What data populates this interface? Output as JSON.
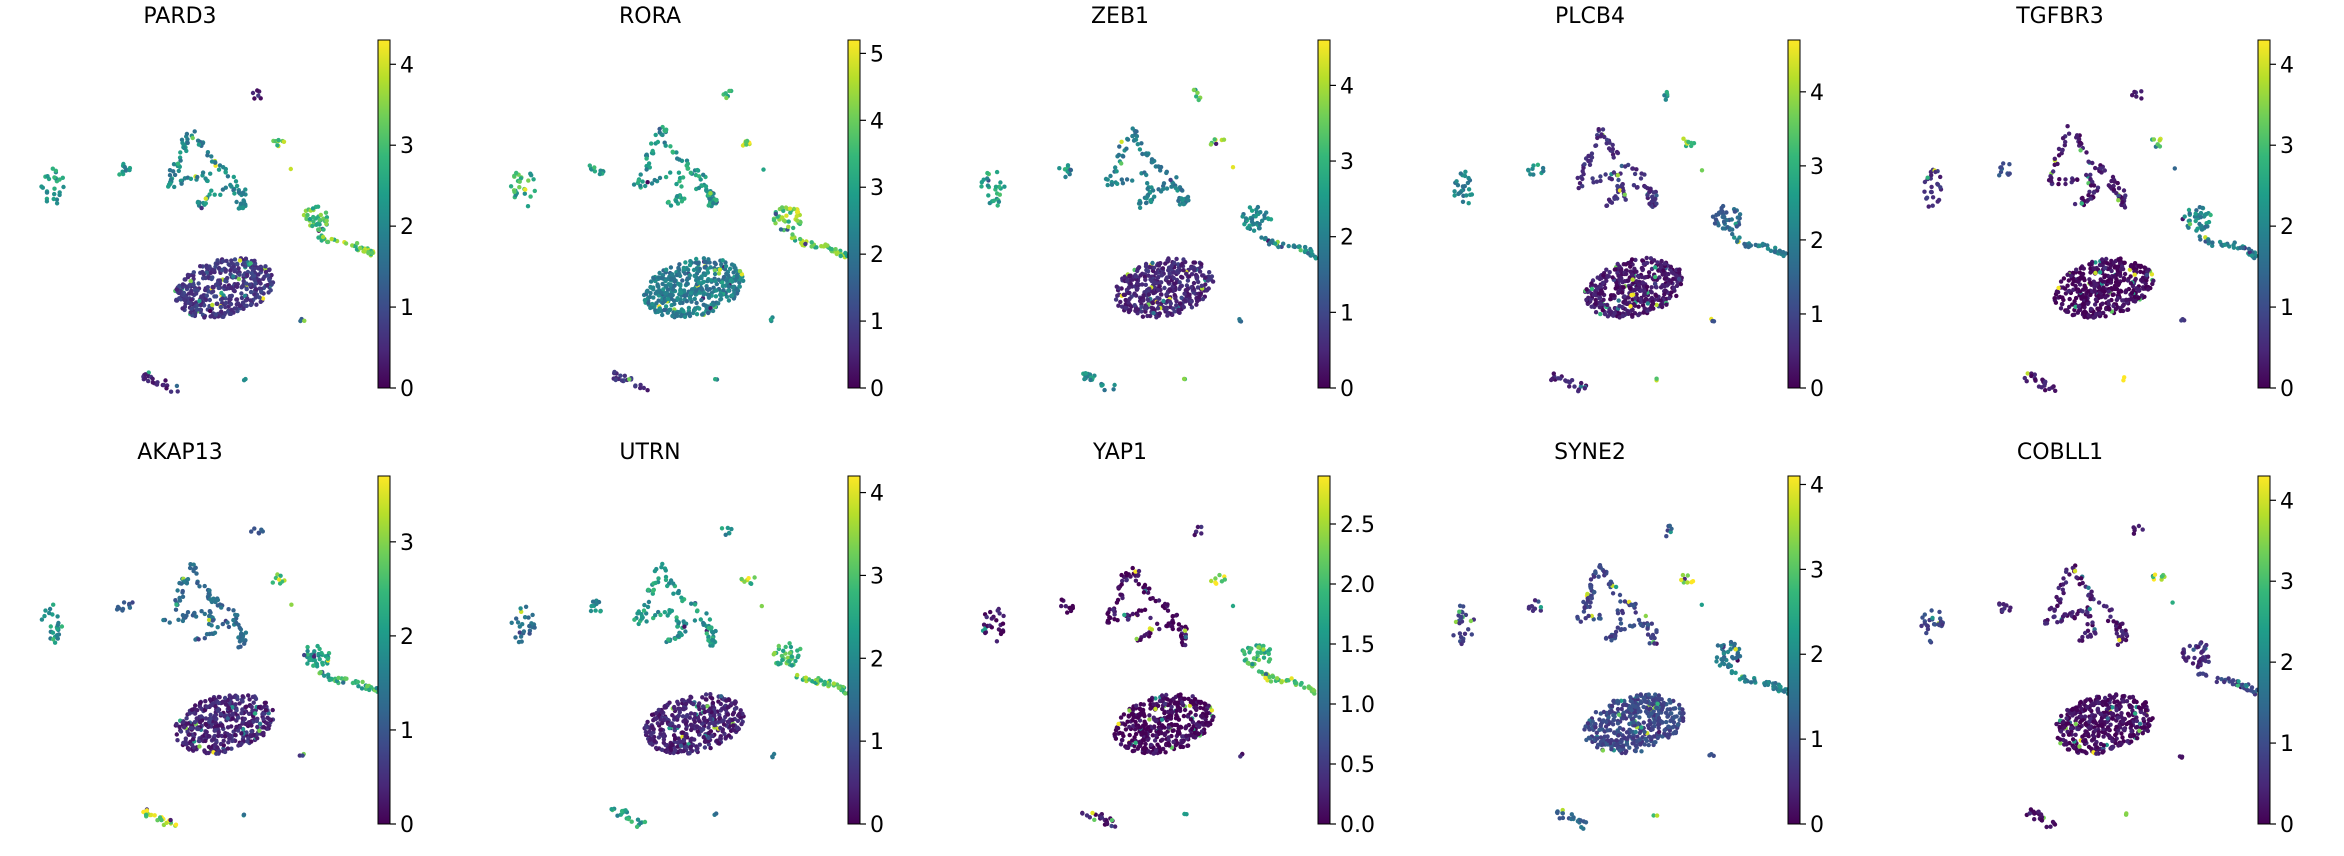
{
  "chart_data": [
    {
      "type": "scatter",
      "title": "PARD3",
      "colorbar": {
        "min": 0,
        "max": 4.3,
        "ticks": [
          0,
          1,
          2,
          3,
          4
        ],
        "labels": [
          "0",
          "1",
          "2",
          "3",
          "4"
        ]
      },
      "cluster_expression": {
        "left_small": 2.4,
        "left_mid": 2.2,
        "top_branch": 2.0,
        "top_right_dot": 0.4,
        "yellow_spot": 3.5,
        "tiny_yellow": 3.7,
        "right_lobe": 3.0,
        "right_tail": 3.2,
        "main_blob": 0.7,
        "small_right": 1.2,
        "bottom_left": 0.4,
        "bottom_dot": 1.8
      }
    },
    {
      "type": "scatter",
      "title": "RORA",
      "colorbar": {
        "min": 0,
        "max": 5.2,
        "ticks": [
          0,
          1,
          2,
          3,
          4,
          5
        ],
        "labels": [
          "0",
          "1",
          "2",
          "3",
          "4",
          "5"
        ]
      },
      "cluster_expression": {
        "left_small": 3.3,
        "left_mid": 3.0,
        "top_branch": 2.8,
        "top_right_dot": 3.6,
        "yellow_spot": 4.8,
        "tiny_yellow": 4.0,
        "right_lobe": 4.2,
        "right_tail": 3.8,
        "main_blob": 2.2,
        "small_right": 2.5,
        "bottom_left": 0.8,
        "bottom_dot": 2.6
      }
    },
    {
      "type": "scatter",
      "title": "ZEB1",
      "colorbar": {
        "min": 0,
        "max": 4.6,
        "ticks": [
          0,
          1,
          2,
          3,
          4
        ],
        "labels": [
          "0",
          "1",
          "2",
          "3",
          "4"
        ]
      },
      "cluster_expression": {
        "left_small": 2.7,
        "left_mid": 2.4,
        "top_branch": 2.0,
        "top_right_dot": 3.0,
        "yellow_spot": 3.9,
        "tiny_yellow": 4.0,
        "right_lobe": 2.2,
        "right_tail": 2.1,
        "main_blob": 0.5,
        "small_right": 1.5,
        "bottom_left": 2.2,
        "bottom_dot": 3.2
      }
    },
    {
      "type": "scatter",
      "title": "PLCB4",
      "colorbar": {
        "min": 0,
        "max": 4.7,
        "ticks": [
          0,
          1,
          2,
          3,
          4
        ],
        "labels": [
          "0",
          "1",
          "2",
          "3",
          "4"
        ]
      },
      "cluster_expression": {
        "left_small": 2.0,
        "left_mid": 2.4,
        "top_branch": 0.6,
        "top_right_dot": 2.4,
        "yellow_spot": 3.6,
        "tiny_yellow": 4.0,
        "right_lobe": 1.5,
        "right_tail": 1.9,
        "main_blob": 0.3,
        "small_right": 1.3,
        "bottom_left": 0.4,
        "bottom_dot": 3.8
      }
    },
    {
      "type": "scatter",
      "title": "TGFBR3",
      "colorbar": {
        "min": 0,
        "max": 4.3,
        "ticks": [
          0,
          1,
          2,
          3,
          4
        ],
        "labels": [
          "0",
          "1",
          "2",
          "3",
          "4"
        ]
      },
      "cluster_expression": {
        "left_small": 0.6,
        "left_mid": 1.2,
        "top_branch": 0.3,
        "top_right_dot": 0.5,
        "yellow_spot": 3.6,
        "tiny_yellow": 1.2,
        "right_lobe": 2.0,
        "right_tail": 1.8,
        "main_blob": 0.1,
        "small_right": 0.6,
        "bottom_left": 0.3,
        "bottom_dot": 3.9
      }
    },
    {
      "type": "scatter",
      "title": "AKAP13",
      "colorbar": {
        "min": 0,
        "max": 3.7,
        "ticks": [
          0,
          1,
          2,
          3
        ],
        "labels": [
          "0",
          "1",
          "2",
          "3"
        ]
      },
      "cluster_expression": {
        "left_small": 1.9,
        "left_mid": 1.0,
        "top_branch": 1.3,
        "top_right_dot": 1.1,
        "yellow_spot": 3.0,
        "tiny_yellow": 3.2,
        "right_lobe": 2.0,
        "right_tail": 2.4,
        "main_blob": 0.4,
        "small_right": 0.6,
        "bottom_left": 3.3,
        "bottom_dot": 1.5
      }
    },
    {
      "type": "scatter",
      "title": "UTRN",
      "colorbar": {
        "min": 0,
        "max": 4.2,
        "ticks": [
          0,
          1,
          2,
          3,
          4
        ],
        "labels": [
          "0",
          "1",
          "2",
          "3",
          "4"
        ]
      },
      "cluster_expression": {
        "left_small": 1.6,
        "left_mid": 2.0,
        "top_branch": 2.3,
        "top_right_dot": 2.2,
        "yellow_spot": 3.7,
        "tiny_yellow": 3.5,
        "right_lobe": 2.8,
        "right_tail": 3.0,
        "main_blob": 0.4,
        "small_right": 1.8,
        "bottom_left": 2.4,
        "bottom_dot": 2.0
      }
    },
    {
      "type": "scatter",
      "title": "YAP1",
      "colorbar": {
        "min": 0,
        "max": 2.9,
        "ticks": [
          0,
          0.5,
          1,
          1.5,
          2,
          2.5
        ],
        "labels": [
          "0.0",
          "0.5",
          "1.0",
          "1.5",
          "2.0",
          "2.5"
        ]
      },
      "cluster_expression": {
        "left_small": 0.1,
        "left_mid": 0.1,
        "top_branch": 0.05,
        "top_right_dot": 0.2,
        "yellow_spot": 2.7,
        "tiny_yellow": 2.0,
        "right_lobe": 1.9,
        "right_tail": 2.3,
        "main_blob": 0.02,
        "small_right": 0.1,
        "bottom_left": 0.1,
        "bottom_dot": 1.6
      }
    },
    {
      "type": "scatter",
      "title": "SYNE2",
      "colorbar": {
        "min": 0,
        "max": 4.1,
        "ticks": [
          0,
          1,
          2,
          3,
          4
        ],
        "labels": [
          "0",
          "1",
          "2",
          "3",
          "4"
        ]
      },
      "cluster_expression": {
        "left_small": 0.8,
        "left_mid": 0.6,
        "top_branch": 0.9,
        "top_right_dot": 1.0,
        "yellow_spot": 3.9,
        "tiny_yellow": 2.0,
        "right_lobe": 1.6,
        "right_tail": 1.8,
        "main_blob": 0.9,
        "small_right": 1.0,
        "bottom_left": 1.4,
        "bottom_dot": 3.5
      }
    },
    {
      "type": "scatter",
      "title": "COBLL1",
      "colorbar": {
        "min": 0,
        "max": 4.3,
        "ticks": [
          0,
          1,
          2,
          3,
          4
        ],
        "labels": [
          "0",
          "1",
          "2",
          "3",
          "4"
        ]
      },
      "cluster_expression": {
        "left_small": 0.9,
        "left_mid": 0.4,
        "top_branch": 0.3,
        "top_right_dot": 0.4,
        "yellow_spot": 3.9,
        "tiny_yellow": 3.5,
        "right_lobe": 0.5,
        "right_tail": 0.9,
        "main_blob": 0.15,
        "small_right": 0.2,
        "bottom_left": 0.3,
        "bottom_dot": 3.0
      }
    }
  ],
  "colormap": [
    "#440154",
    "#482878",
    "#3e4989",
    "#31688e",
    "#26828e",
    "#1f9e89",
    "#35b779",
    "#6ece58",
    "#b5de2b",
    "#fde725"
  ],
  "axis_color": "#000000"
}
